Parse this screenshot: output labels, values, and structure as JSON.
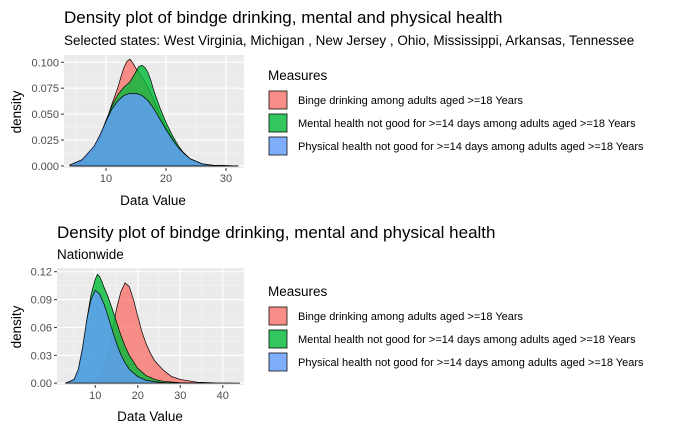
{
  "chart_data": [
    {
      "type": "area",
      "title": "Density plot of bindge drinking, mental and physical health",
      "subtitle": "Selected states: West Virginia, Michigan , New Jersey , Ohio, Mississippi, Arkansas, Tennessee",
      "xlabel": "Data Value",
      "ylabel": "density",
      "xlim": [
        3,
        33
      ],
      "ylim": [
        -0.002,
        0.107
      ],
      "x_ticks": [
        10,
        20,
        30
      ],
      "x_tick_labels": [
        "10",
        "20",
        "30"
      ],
      "y_ticks": [
        0,
        0.025,
        0.05,
        0.075,
        0.1
      ],
      "y_tick_labels": [
        "0.000",
        "0.025",
        "0.050",
        "0.075",
        "0.100"
      ],
      "grid": true,
      "legend_title": "Measures",
      "legend_position": "right",
      "series": [
        {
          "name": "Binge drinking among adults aged >=18 Years",
          "color": "#F8766D",
          "x": [
            4,
            6,
            8,
            9,
            10,
            11,
            12,
            12.5,
            13,
            13.5,
            14,
            14.5,
            15,
            15.5,
            16,
            17,
            18,
            19,
            20,
            22,
            24,
            26,
            28,
            32
          ],
          "y": [
            0.001,
            0.004,
            0.015,
            0.026,
            0.042,
            0.06,
            0.076,
            0.086,
            0.095,
            0.101,
            0.103,
            0.099,
            0.094,
            0.09,
            0.086,
            0.076,
            0.063,
            0.05,
            0.037,
            0.018,
            0.007,
            0.002,
            0.0005,
            0
          ]
        },
        {
          "name": "Mental health not good for >=14 days among adults aged >=18 Years",
          "color": "#00BA38",
          "x": [
            4,
            6,
            8,
            9,
            10,
            11,
            12,
            13,
            14,
            14.5,
            15,
            15.5,
            16,
            16.5,
            17,
            17.5,
            18,
            19,
            20,
            21,
            22,
            23,
            24,
            26,
            28,
            32
          ],
          "y": [
            0.001,
            0.005,
            0.017,
            0.028,
            0.044,
            0.058,
            0.069,
            0.076,
            0.081,
            0.086,
            0.091,
            0.096,
            0.097,
            0.095,
            0.09,
            0.082,
            0.072,
            0.056,
            0.042,
            0.03,
            0.02,
            0.012,
            0.007,
            0.002,
            0.0005,
            0
          ]
        },
        {
          "name": "Physical health not good for >=14 days among adults aged >=18 Years",
          "color": "#619CFF",
          "x": [
            4,
            6,
            8,
            9,
            10,
            11,
            12,
            13,
            14,
            15,
            16,
            17,
            18,
            19,
            20,
            21,
            22,
            23,
            24,
            26,
            28,
            32
          ],
          "y": [
            0.001,
            0.006,
            0.019,
            0.03,
            0.043,
            0.055,
            0.063,
            0.068,
            0.07,
            0.07,
            0.068,
            0.063,
            0.055,
            0.045,
            0.035,
            0.026,
            0.018,
            0.012,
            0.007,
            0.002,
            0.0005,
            0
          ]
        }
      ]
    },
    {
      "type": "area",
      "title": "Density plot of bindge drinking, mental and physical health",
      "subtitle": "Nationwide",
      "xlabel": "Data Value",
      "ylabel": "density",
      "xlim": [
        1,
        45
      ],
      "ylim": [
        -0.002,
        0.124
      ],
      "x_ticks": [
        10,
        20,
        30,
        40
      ],
      "x_tick_labels": [
        "10",
        "20",
        "30",
        "40"
      ],
      "y_ticks": [
        0,
        0.03,
        0.06,
        0.09,
        0.12
      ],
      "y_tick_labels": [
        "0.00",
        "0.03",
        "0.06",
        "0.09",
        "0.12"
      ],
      "grid": true,
      "legend_title": "Measures",
      "legend_position": "right",
      "series": [
        {
          "name": "Binge drinking among adults aged >=18 Years",
          "color": "#F8766D",
          "x": [
            4,
            8,
            10,
            12,
            13,
            14,
            15,
            16,
            17,
            18,
            19,
            20,
            21,
            22,
            23,
            24,
            26,
            28,
            30,
            34,
            38,
            44
          ],
          "y": [
            0,
            0.001,
            0.004,
            0.015,
            0.03,
            0.055,
            0.08,
            0.098,
            0.108,
            0.104,
            0.09,
            0.072,
            0.055,
            0.042,
            0.032,
            0.024,
            0.014,
            0.007,
            0.004,
            0.001,
            0.0003,
            0
          ]
        },
        {
          "name": "Mental health not good for >=14 days among adults aged >=18 Years",
          "color": "#00BA38",
          "x": [
            3,
            5,
            6,
            7,
            8,
            9,
            10,
            10.5,
            11,
            11.5,
            12,
            13,
            14,
            15,
            16,
            17,
            18,
            20,
            22,
            24,
            26,
            30,
            36
          ],
          "y": [
            0,
            0.003,
            0.012,
            0.035,
            0.068,
            0.095,
            0.112,
            0.117,
            0.115,
            0.11,
            0.104,
            0.093,
            0.08,
            0.066,
            0.052,
            0.04,
            0.03,
            0.016,
            0.008,
            0.004,
            0.002,
            0.0005,
            0
          ]
        },
        {
          "name": "Physical health not good for >=14 days among adults aged >=18 Years",
          "color": "#619CFF",
          "x": [
            3,
            5,
            6,
            7,
            8,
            9,
            10,
            11,
            12,
            13,
            14,
            15,
            16,
            17,
            18,
            20,
            22,
            24,
            26,
            30,
            36
          ],
          "y": [
            0,
            0.004,
            0.015,
            0.038,
            0.068,
            0.09,
            0.1,
            0.096,
            0.086,
            0.072,
            0.057,
            0.043,
            0.031,
            0.022,
            0.015,
            0.007,
            0.003,
            0.0015,
            0.0006,
            0.0001,
            0
          ]
        }
      ]
    }
  ]
}
